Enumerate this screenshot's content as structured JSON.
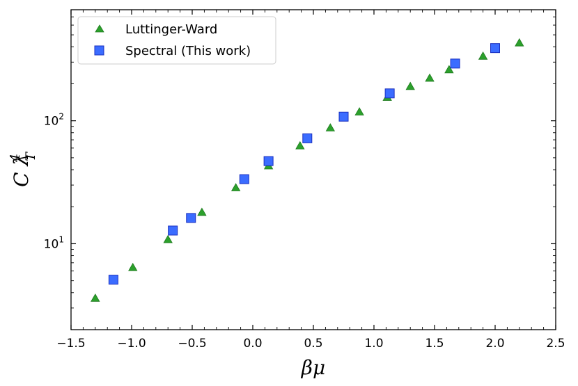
{
  "chart_data": {
    "type": "scatter",
    "xlabel": "βμ",
    "ylabel": "C λ_T^4",
    "ylabel_main": "C λ",
    "ylabel_sup": "4",
    "ylabel_sub": "T",
    "xlim": [
      -1.5,
      2.5
    ],
    "ylim": [
      2.0,
      800
    ],
    "yscale": "log",
    "grid": false,
    "legend_position": "top-left",
    "x_ticks": [
      {
        "value": -1.5,
        "label": "−1.5"
      },
      {
        "value": -1.0,
        "label": "−1.0"
      },
      {
        "value": -0.5,
        "label": "−0.5"
      },
      {
        "value": 0.0,
        "label": "0.0"
      },
      {
        "value": 0.5,
        "label": "0.5"
      },
      {
        "value": 1.0,
        "label": "1.0"
      },
      {
        "value": 1.5,
        "label": "1.5"
      },
      {
        "value": 2.0,
        "label": "2.0"
      },
      {
        "value": 2.5,
        "label": "2.5"
      }
    ],
    "y_ticks": [
      {
        "value": 10,
        "base": "10",
        "exp": "1"
      },
      {
        "value": 100,
        "base": "10",
        "exp": "2"
      }
    ],
    "series": [
      {
        "name": "Luttinger-Ward",
        "marker": "triangle",
        "color": "#2ca02c",
        "edge": "#1e7a1e",
        "x": [
          -1.3,
          -0.99,
          -0.7,
          -0.42,
          -0.14,
          0.13,
          0.39,
          0.64,
          0.88,
          1.11,
          1.3,
          1.46,
          1.62,
          1.9,
          2.2
        ],
        "y": [
          3.6,
          6.4,
          10.8,
          18.0,
          28.5,
          43.0,
          62.5,
          87.5,
          118,
          155,
          190,
          222,
          260,
          335,
          430
        ]
      },
      {
        "name": "Spectral (This work)",
        "marker": "square",
        "color": "#3b6cff",
        "edge": "#1a2fbf",
        "x": [
          -1.15,
          -0.66,
          -0.51,
          -0.07,
          0.13,
          0.45,
          0.75,
          1.13,
          1.67,
          2.0
        ],
        "y": [
          5.1,
          12.8,
          16.2,
          33.5,
          47.0,
          72.0,
          108,
          167,
          292,
          390
        ]
      }
    ]
  }
}
